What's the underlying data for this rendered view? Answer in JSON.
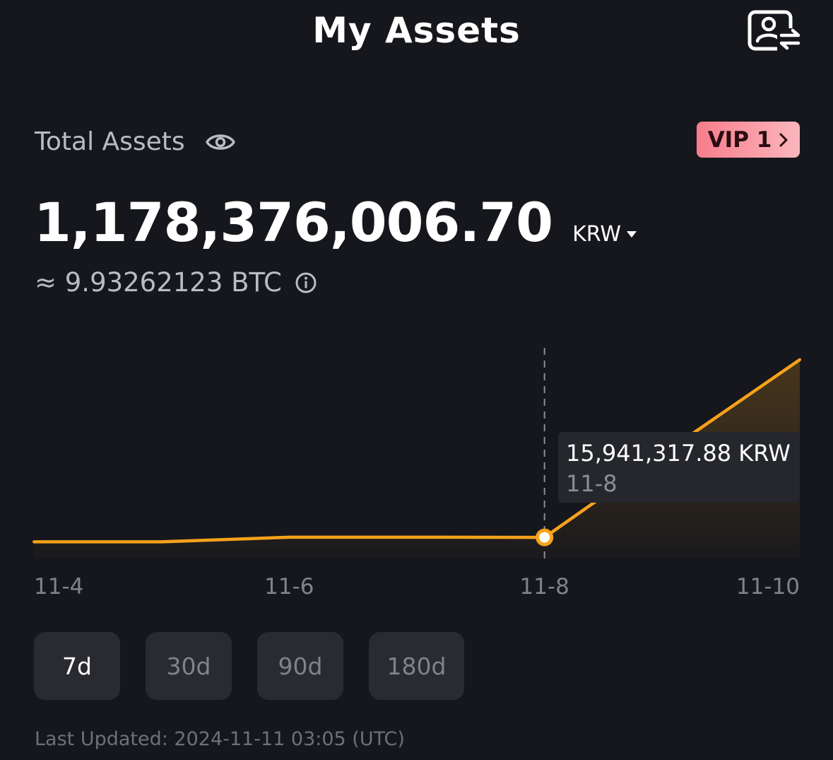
{
  "header": {
    "title": "My Assets",
    "profile_icon": "profile-switch-icon"
  },
  "summary": {
    "label": "Total Assets",
    "visibility_icon": "eye-icon",
    "vip_label": "VIP 1",
    "amount": "1,178,376,006.70",
    "currency": "KRW",
    "btc_equivalent": "≈ 9.93262123 BTC",
    "info_icon": "info-icon"
  },
  "chart_data": {
    "type": "area",
    "x": [
      "11-4",
      "11-5",
      "11-6",
      "11-7",
      "11-8",
      "11-9",
      "11-10"
    ],
    "values": [
      12590000,
      12590000,
      16090000,
      16090000,
      15941317.88,
      83600000,
      150000000
    ],
    "xticks": [
      "11-4",
      "11-6",
      "11-8",
      "11-10"
    ],
    "ylim": [
      0,
      160000000
    ],
    "line_color": "#f7a21b",
    "grid": false,
    "tooltip": {
      "value": "15,941,317.88 KRW",
      "date": "11-8"
    }
  },
  "range_buttons": [
    {
      "label": "7d",
      "active": true
    },
    {
      "label": "30d",
      "active": false
    },
    {
      "label": "90d",
      "active": false
    },
    {
      "label": "180d",
      "active": false
    }
  ],
  "footer": {
    "last_updated": "Last Updated: 2024-11-11 03:05 (UTC)"
  }
}
